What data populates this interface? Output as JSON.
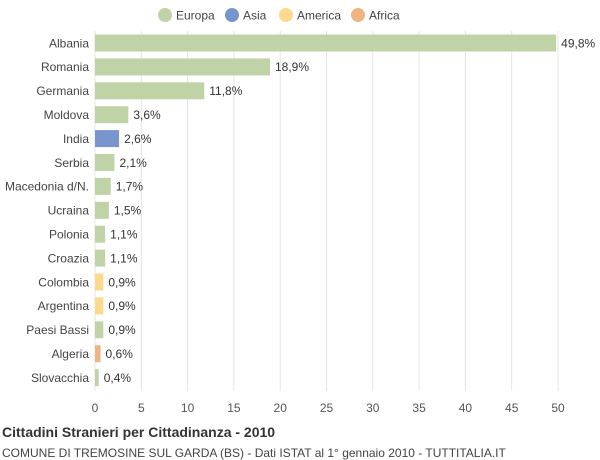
{
  "chart_data": {
    "type": "bar",
    "orientation": "horizontal",
    "title": "Cittadini Stranieri per Cittadinanza - 2010",
    "subtitle": "COMUNE DI TREMOSINE SUL GARDA (BS) - Dati ISTAT al 1° gennaio 2010 - TUTTITALIA.IT",
    "xlim": [
      0,
      50
    ],
    "xticks": [
      "0",
      "5",
      "10",
      "15",
      "20",
      "25",
      "30",
      "35",
      "40",
      "45",
      "50"
    ],
    "grid": true,
    "legend_position": "top",
    "legend": [
      {
        "name": "Europa",
        "color": "#c0d3a7"
      },
      {
        "name": "Asia",
        "color": "#7895cd"
      },
      {
        "name": "America",
        "color": "#fdd98d"
      },
      {
        "name": "Africa",
        "color": "#f0b483"
      }
    ],
    "bars": [
      {
        "category": "Albania",
        "value": 49.8,
        "label": "49,8%",
        "group": "Europa"
      },
      {
        "category": "Romania",
        "value": 18.9,
        "label": "18,9%",
        "group": "Europa"
      },
      {
        "category": "Germania",
        "value": 11.8,
        "label": "11,8%",
        "group": "Europa"
      },
      {
        "category": "Moldova",
        "value": 3.6,
        "label": "3,6%",
        "group": "Europa"
      },
      {
        "category": "India",
        "value": 2.6,
        "label": "2,6%",
        "group": "Asia"
      },
      {
        "category": "Serbia",
        "value": 2.1,
        "label": "2,1%",
        "group": "Europa"
      },
      {
        "category": "Macedonia d/N.",
        "value": 1.7,
        "label": "1,7%",
        "group": "Europa"
      },
      {
        "category": "Ucraina",
        "value": 1.5,
        "label": "1,5%",
        "group": "Europa"
      },
      {
        "category": "Polonia",
        "value": 1.1,
        "label": "1,1%",
        "group": "Europa"
      },
      {
        "category": "Croazia",
        "value": 1.1,
        "label": "1,1%",
        "group": "Europa"
      },
      {
        "category": "Colombia",
        "value": 0.9,
        "label": "0,9%",
        "group": "America"
      },
      {
        "category": "Argentina",
        "value": 0.9,
        "label": "0,9%",
        "group": "America"
      },
      {
        "category": "Paesi Bassi",
        "value": 0.9,
        "label": "0,9%",
        "group": "Europa"
      },
      {
        "category": "Algeria",
        "value": 0.6,
        "label": "0,6%",
        "group": "Africa"
      },
      {
        "category": "Slovacchia",
        "value": 0.4,
        "label": "0,4%",
        "group": "Europa"
      }
    ]
  }
}
